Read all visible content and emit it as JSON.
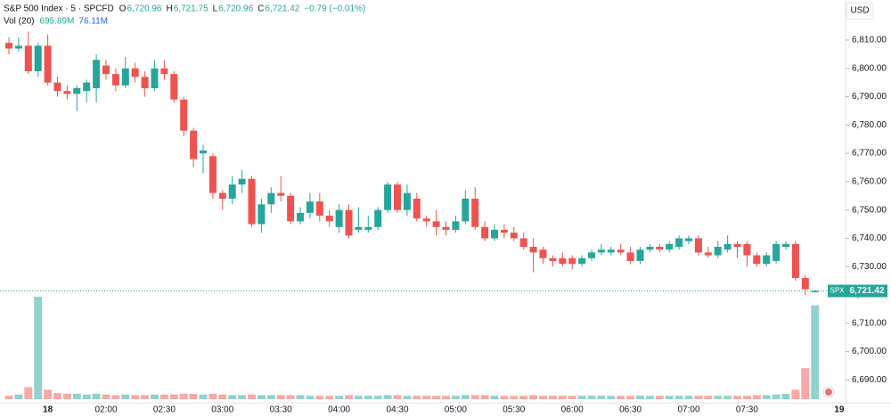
{
  "header": {
    "symbol": "S&P 500 Index · 5 · SPCFD",
    "o_label": "O",
    "open": "6,720.96",
    "h_label": "H",
    "high": "6,721.75",
    "l_label": "L",
    "low": "6,720.96",
    "c_label": "C",
    "close": "6,721.42",
    "change": "−0.79 (−0.01%)",
    "vol_label": "Vol (20)",
    "volume": "695.89M",
    "volume_ma": "76.11M",
    "currency": "USD",
    "price_tag_symbol": "SPX",
    "price_tag_value": "6,721.42"
  },
  "chart_data": {
    "type": "candlestick",
    "up_color": "#26a69a",
    "down_color": "#ef5350",
    "x": [
      null,
      null,
      null,
      null,
      "18",
      null,
      null,
      null,
      null,
      null,
      "02:00",
      null,
      null,
      null,
      null,
      null,
      "02:30",
      null,
      null,
      null,
      null,
      null,
      "03:00",
      null,
      null,
      null,
      null,
      null,
      "03:30",
      null,
      null,
      null,
      null,
      null,
      "04:00",
      null,
      null,
      null,
      null,
      null,
      "04:30",
      null,
      null,
      null,
      null,
      null,
      "05:00",
      null,
      null,
      null,
      null,
      null,
      "05:30",
      null,
      null,
      null,
      null,
      null,
      "06:00",
      null,
      null,
      null,
      null,
      null,
      "06:30",
      null,
      null,
      null,
      null,
      null,
      "07:00",
      null,
      null,
      null,
      null,
      null,
      "07:30",
      null,
      null,
      null,
      null,
      null,
      null,
      null
    ],
    "next_day_label": "19",
    "open": [
      6809,
      6807,
      6808,
      6799,
      6808,
      6795,
      6792,
      6791,
      6792,
      6793,
      6801,
      6798,
      6794,
      6800,
      6797,
      6793,
      6800,
      6798,
      6789,
      6778,
      6770,
      6769,
      6756,
      6754,
      6759,
      6761,
      6745,
      6752,
      6756,
      6755,
      6746,
      6749,
      6753,
      6748,
      6744,
      6750,
      6743,
      6743,
      6744,
      6750,
      6759,
      6750,
      6754,
      6747,
      6746,
      6744,
      6743,
      6746,
      6754,
      6744,
      6740,
      6743,
      6742,
      6740,
      6737,
      6736,
      6733,
      6733,
      6733,
      6731,
      6733,
      6735,
      6735,
      6736,
      6735,
      6732,
      6736,
      6737,
      6736,
      6737,
      6739,
      6740,
      6735,
      6734,
      6736,
      6738,
      6738,
      6734,
      6731,
      6732,
      6737,
      6738,
      6726,
      6720.96
    ],
    "high": [
      6811,
      6811,
      6813,
      6809,
      6812,
      6797,
      6794,
      6794,
      6796,
      6805,
      6803,
      6800,
      6804,
      6802,
      6799,
      6803,
      6803,
      6799,
      6790,
      6779,
      6773,
      6770,
      6757,
      6762,
      6764,
      6762,
      6754,
      6758,
      6762,
      6756,
      6751,
      6756,
      6756,
      6750,
      6752,
      6752,
      6751,
      6748,
      6751,
      6760,
      6760,
      6759,
      6756,
      6748,
      6750,
      6746,
      6748,
      6757,
      6758,
      6746,
      6745,
      6745,
      6744,
      6742,
      6740,
      6737,
      6734,
      6735,
      6734,
      6734,
      6736,
      6738,
      6737,
      6738,
      6737,
      6737,
      6738,
      6738,
      6739,
      6741,
      6741,
      6741,
      6737,
      6739,
      6741,
      6739,
      6739,
      6735,
      6735,
      6739,
      6739,
      6739,
      6727,
      6721.75
    ],
    "low": [
      6805,
      6806,
      6798,
      6797,
      6794,
      6790,
      6789,
      6785,
      6788,
      6788,
      6796,
      6792,
      6793,
      6795,
      6790,
      6792,
      6796,
      6788,
      6776,
      6765,
      6763,
      6754,
      6750,
      6752,
      6756,
      6744,
      6742,
      6749,
      6753,
      6745,
      6745,
      6747,
      6746,
      6744,
      6742,
      6740,
      6742,
      6742,
      6743,
      6749,
      6749,
      6748,
      6746,
      6744,
      6741,
      6741,
      6742,
      6745,
      6743,
      6739,
      6739,
      6740,
      6739,
      6736,
      6728,
      6731,
      6730,
      6730,
      6729,
      6730,
      6732,
      6734,
      6734,
      6734,
      6731,
      6731,
      6735,
      6735,
      6735,
      6736,
      6738,
      6734,
      6733,
      6733,
      6735,
      6733,
      6730,
      6730,
      6730,
      6731,
      6736,
      6725,
      6720,
      6720.96
    ],
    "close": [
      6807,
      6808,
      6799,
      6808,
      6795,
      6792,
      6791,
      6793,
      6795,
      6803,
      6798,
      6794,
      6800,
      6797,
      6793,
      6800,
      6798,
      6789,
      6778,
      6768,
      6771,
      6756,
      6754,
      6759,
      6761,
      6745,
      6752,
      6756,
      6755,
      6746,
      6749,
      6753,
      6748,
      6746,
      6750,
      6741,
      6744,
      6744,
      6750,
      6759,
      6750,
      6756,
      6747,
      6746,
      6744,
      6743,
      6746,
      6754,
      6744,
      6740,
      6743,
      6742,
      6740,
      6737,
      6735,
      6733,
      6732,
      6731,
      6731,
      6733,
      6735,
      6736,
      6736,
      6735,
      6732,
      6736,
      6737,
      6736,
      6738,
      6740,
      6740,
      6735,
      6734,
      6737,
      6738,
      6737,
      6734,
      6731,
      6734,
      6738,
      6738,
      6726,
      6722,
      6721.42
    ],
    "volume": [
      25,
      35,
      90,
      760,
      70,
      45,
      40,
      40,
      35,
      40,
      35,
      30,
      35,
      30,
      30,
      35,
      35,
      35,
      40,
      40,
      35,
      40,
      35,
      30,
      30,
      35,
      30,
      30,
      30,
      30,
      30,
      25,
      25,
      25,
      25,
      30,
      25,
      25,
      25,
      30,
      30,
      25,
      25,
      25,
      25,
      25,
      25,
      30,
      30,
      30,
      25,
      25,
      25,
      25,
      30,
      25,
      25,
      25,
      25,
      25,
      25,
      25,
      25,
      25,
      25,
      25,
      25,
      25,
      25,
      25,
      25,
      25,
      25,
      25,
      25,
      25,
      25,
      30,
      30,
      35,
      40,
      70,
      230,
      695.89
    ],
    "ylim": [
      6681,
      6821
    ],
    "yticks": [
      {
        "value": 6690,
        "label": "6,690.00"
      },
      {
        "value": 6700,
        "label": "6,700.00"
      },
      {
        "value": 6710,
        "label": "6,710.00"
      },
      {
        "value": 6720,
        "label": "6,720.00"
      },
      {
        "value": 6730,
        "label": "6,730.00"
      },
      {
        "value": 6740,
        "label": "6,740.00"
      },
      {
        "value": 6750,
        "label": "6,750.00"
      },
      {
        "value": 6760,
        "label": "6,760.00"
      },
      {
        "value": 6770,
        "label": "6,770.00"
      },
      {
        "value": 6780,
        "label": "6,780.00"
      },
      {
        "value": 6790,
        "label": "6,790.00"
      },
      {
        "value": 6800,
        "label": "6,800.00"
      },
      {
        "value": 6810,
        "label": "6,810.00"
      }
    ]
  }
}
